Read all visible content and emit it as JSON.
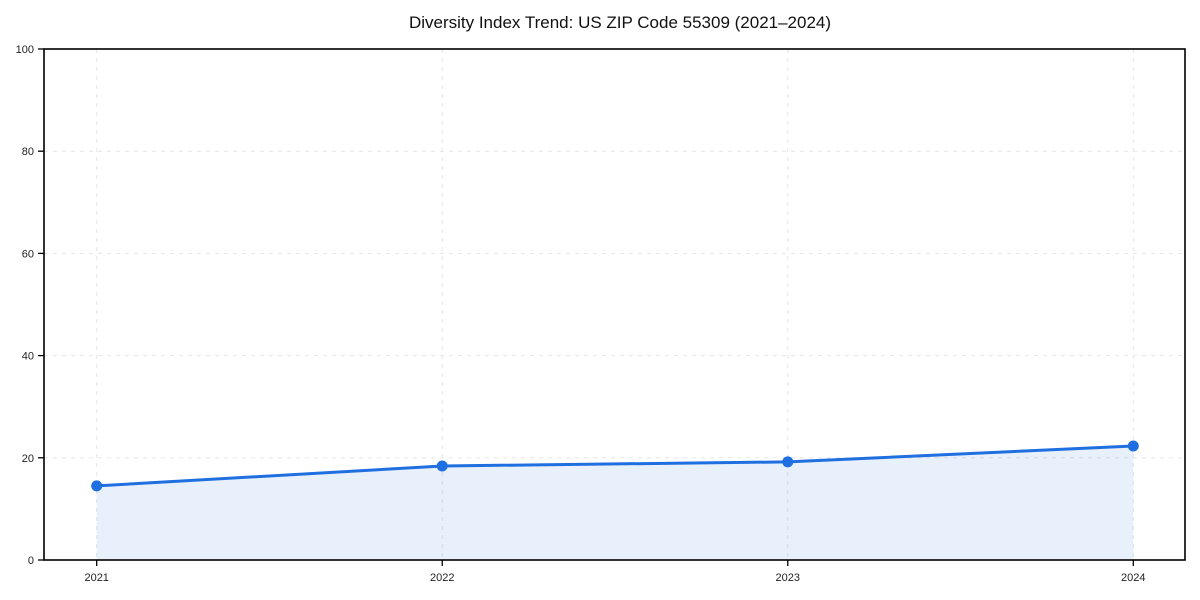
{
  "chart_data": {
    "type": "line",
    "title": "Diversity Index Trend: US ZIP Code 55309 (2021–2024)",
    "x": [
      "2021",
      "2022",
      "2023",
      "2024"
    ],
    "values": [
      14.5,
      18.4,
      19.2,
      22.3
    ],
    "ylim": [
      0,
      100
    ],
    "yticks": [
      0,
      20,
      40,
      60,
      80,
      100
    ],
    "grid": "dashed-horizontal-and-vertical",
    "legend": "none",
    "marker": "circle",
    "area_fill": true,
    "boxed_axes": true,
    "colors": {
      "line": "#1f6fe0",
      "area_fill_effective": "#e9f1fc",
      "grid": "#e5e5e5",
      "spine": "#000000",
      "tick_label": "#222222",
      "title": "#111111",
      "background": "#ffffff"
    }
  }
}
